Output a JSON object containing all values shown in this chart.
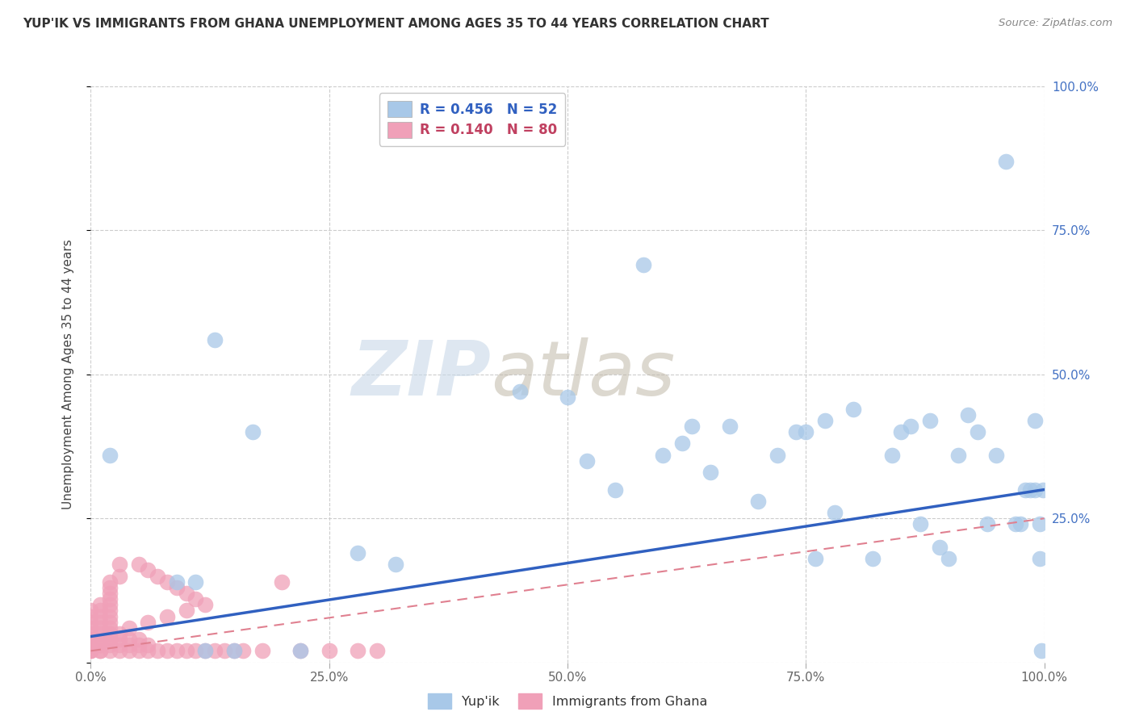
{
  "title": "YUP'IK VS IMMIGRANTS FROM GHANA UNEMPLOYMENT AMONG AGES 35 TO 44 YEARS CORRELATION CHART",
  "source": "Source: ZipAtlas.com",
  "ylabel": "Unemployment Among Ages 35 to 44 years",
  "legend_label1": "Yup'ik",
  "legend_label2": "Immigrants from Ghana",
  "R1": "0.456",
  "N1": "52",
  "R2": "0.140",
  "N2": "80",
  "color1": "#a8c8e8",
  "color2": "#f0a0b8",
  "line1_color": "#3060c0",
  "line2_color": "#e08090",
  "xmin": 0.0,
  "xmax": 1.0,
  "ymin": 0.0,
  "ymax": 1.0,
  "xticks": [
    0.0,
    0.25,
    0.5,
    0.75,
    1.0
  ],
  "yticks": [
    0.0,
    0.25,
    0.5,
    0.75,
    1.0
  ],
  "xtick_labels": [
    "0.0%",
    "25.0%",
    "50.0%",
    "75.0%",
    "100.0%"
  ],
  "ytick_labels_right": [
    "",
    "25.0%",
    "50.0%",
    "75.0%",
    "100.0%"
  ],
  "yup_ik_x": [
    0.02,
    0.09,
    0.11,
    0.12,
    0.13,
    0.15,
    0.17,
    0.22,
    0.28,
    0.32,
    0.45,
    0.5,
    0.52,
    0.55,
    0.58,
    0.6,
    0.62,
    0.63,
    0.65,
    0.67,
    0.7,
    0.72,
    0.74,
    0.75,
    0.76,
    0.77,
    0.78,
    0.8,
    0.82,
    0.84,
    0.85,
    0.86,
    0.87,
    0.88,
    0.89,
    0.9,
    0.91,
    0.92,
    0.93,
    0.94,
    0.95,
    0.96,
    0.97,
    0.975,
    0.98,
    0.985,
    0.99,
    0.99,
    0.995,
    0.995,
    0.997,
    0.999
  ],
  "yup_ik_y": [
    0.36,
    0.14,
    0.14,
    0.02,
    0.56,
    0.02,
    0.4,
    0.02,
    0.19,
    0.17,
    0.47,
    0.46,
    0.35,
    0.3,
    0.69,
    0.36,
    0.38,
    0.41,
    0.33,
    0.41,
    0.28,
    0.36,
    0.4,
    0.4,
    0.18,
    0.42,
    0.26,
    0.44,
    0.18,
    0.36,
    0.4,
    0.41,
    0.24,
    0.42,
    0.2,
    0.18,
    0.36,
    0.43,
    0.4,
    0.24,
    0.36,
    0.87,
    0.24,
    0.24,
    0.3,
    0.3,
    0.42,
    0.3,
    0.18,
    0.24,
    0.02,
    0.3
  ],
  "ghana_x": [
    0.0,
    0.0,
    0.0,
    0.0,
    0.0,
    0.0,
    0.0,
    0.0,
    0.0,
    0.0,
    0.0,
    0.01,
    0.01,
    0.01,
    0.01,
    0.01,
    0.01,
    0.01,
    0.01,
    0.01,
    0.02,
    0.02,
    0.02,
    0.02,
    0.02,
    0.02,
    0.02,
    0.02,
    0.02,
    0.02,
    0.02,
    0.02,
    0.02,
    0.03,
    0.03,
    0.03,
    0.03,
    0.03,
    0.03,
    0.04,
    0.04,
    0.04,
    0.05,
    0.05,
    0.05,
    0.06,
    0.06,
    0.07,
    0.08,
    0.09,
    0.1,
    0.11,
    0.12,
    0.13,
    0.14,
    0.15,
    0.16,
    0.18,
    0.2,
    0.22,
    0.25,
    0.28,
    0.3,
    0.05,
    0.06,
    0.07,
    0.08,
    0.09,
    0.1,
    0.11,
    0.12,
    0.1,
    0.08,
    0.06,
    0.04,
    0.02,
    0.02,
    0.01,
    0.01,
    0.0
  ],
  "ghana_y": [
    0.02,
    0.03,
    0.04,
    0.02,
    0.03,
    0.04,
    0.05,
    0.06,
    0.07,
    0.08,
    0.09,
    0.02,
    0.03,
    0.04,
    0.05,
    0.06,
    0.07,
    0.08,
    0.09,
    0.1,
    0.02,
    0.03,
    0.04,
    0.05,
    0.06,
    0.07,
    0.08,
    0.09,
    0.1,
    0.11,
    0.12,
    0.13,
    0.14,
    0.02,
    0.03,
    0.04,
    0.05,
    0.15,
    0.17,
    0.02,
    0.03,
    0.04,
    0.02,
    0.03,
    0.04,
    0.02,
    0.03,
    0.02,
    0.02,
    0.02,
    0.02,
    0.02,
    0.02,
    0.02,
    0.02,
    0.02,
    0.02,
    0.02,
    0.14,
    0.02,
    0.02,
    0.02,
    0.02,
    0.17,
    0.16,
    0.15,
    0.14,
    0.13,
    0.12,
    0.11,
    0.1,
    0.09,
    0.08,
    0.07,
    0.06,
    0.05,
    0.04,
    0.03,
    0.02,
    0.02
  ],
  "line1_x0": 0.0,
  "line1_y0": 0.045,
  "line1_x1": 1.0,
  "line1_y1": 0.3,
  "line2_x0": 0.0,
  "line2_y0": 0.02,
  "line2_x1": 1.0,
  "line2_y1": 0.25
}
